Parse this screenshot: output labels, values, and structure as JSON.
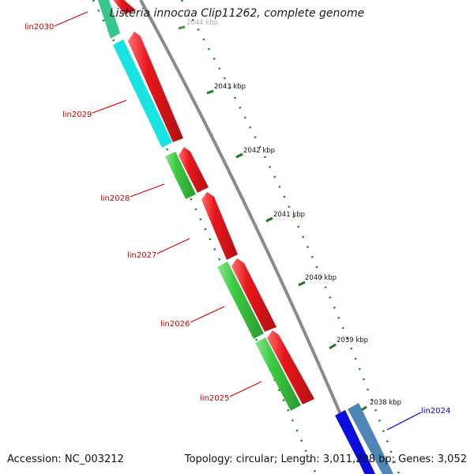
{
  "title": "Listeria innocua Clip11262, complete genome",
  "footer": {
    "accession_label": "Accession:",
    "accession": "NC_003212",
    "topology_label": "Topology:",
    "topology": "circular",
    "length_label": "Length:",
    "length": "3,011,208 bp",
    "genes_label": "Genes:",
    "genes": "3,052"
  },
  "ruler": {
    "ticks": [
      {
        "pos_kbp": 2044,
        "label": "2044 kbp",
        "faded": true
      },
      {
        "pos_kbp": 2043,
        "label": "2043 kbp"
      },
      {
        "pos_kbp": 2042,
        "label": "2042 kbp"
      },
      {
        "pos_kbp": 2041,
        "label": "2041 kbp"
      },
      {
        "pos_kbp": 2040,
        "label": "2040 kbp"
      },
      {
        "pos_kbp": 2039,
        "label": "2039 kbp"
      },
      {
        "pos_kbp": 2038,
        "label": "2038 kbp"
      }
    ]
  },
  "genes": [
    {
      "name": "lin2030",
      "name_color": "#cc0000",
      "outer_color": "#e8171c",
      "inner_color": "#34c98a",
      "strand": "reverse"
    },
    {
      "name": "lin2029",
      "name_color": "#cc0000",
      "outer_color": "#e8171c",
      "inner_color": "#18e3e3",
      "strand": "reverse"
    },
    {
      "name": "lin2028",
      "name_color": "#cc0000",
      "outer_color": "#e8171c",
      "inner_color": "#3bcc43",
      "strand": "reverse"
    },
    {
      "name": "lin2027",
      "name_color": "#cc0000",
      "outer_color": "#e8171c",
      "inner_color": "",
      "strand": "reverse"
    },
    {
      "name": "lin2026",
      "name_color": "#cc0000",
      "outer_color": "#e8171c",
      "inner_color": "#3bcc43",
      "strand": "reverse"
    },
    {
      "name": "lin2025",
      "name_color": "#cc0000",
      "outer_color": "#e8171c",
      "inner_color": "#3bcc43",
      "strand": "reverse"
    },
    {
      "name": "lin2024",
      "name_color": "#0000cc",
      "outer_color": "#0d0de0",
      "inner_color": "#4f86b8",
      "strand": "forward"
    }
  ],
  "colors": {
    "backbone": "#8a8a8a",
    "ruler_tick": "#1a7a1a",
    "label_line_reverse": "#dd0000",
    "label_line_forward": "#0000dd"
  }
}
